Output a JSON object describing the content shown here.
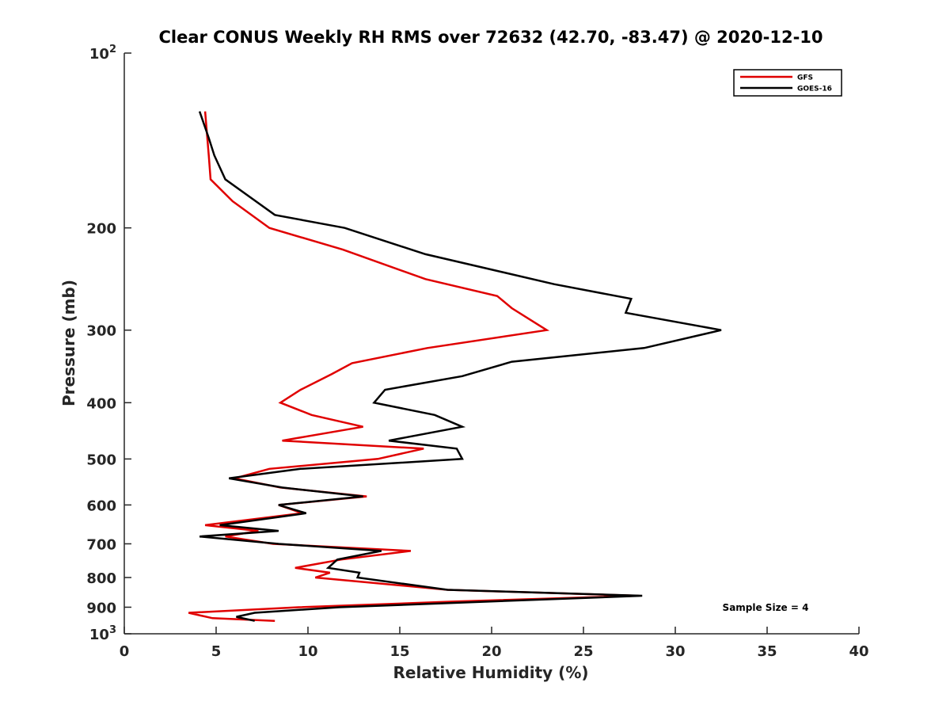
{
  "chart_data": {
    "type": "line",
    "title": "Clear CONUS Weekly RH RMS over 72632 (42.70, -83.47) @ 2020-12-10",
    "xlabel": "Relative Humidity (%)",
    "ylabel": "Pressure (mb)",
    "xlim": [
      0,
      40
    ],
    "ylim": [
      100,
      1000
    ],
    "y_scale": "log",
    "y_reversed": true,
    "x_ticks": [
      "0",
      "5",
      "10",
      "15",
      "20",
      "25",
      "30",
      "35",
      "40"
    ],
    "y_ticks": [
      {
        "value": 100,
        "base": "10",
        "exp": "2"
      },
      {
        "value": 200,
        "label": "200"
      },
      {
        "value": 300,
        "label": "300"
      },
      {
        "value": 400,
        "label": "400"
      },
      {
        "value": 500,
        "label": "500"
      },
      {
        "value": 600,
        "label": "600"
      },
      {
        "value": 700,
        "label": "700"
      },
      {
        "value": 800,
        "label": "800"
      },
      {
        "value": 900,
        "label": "900"
      },
      {
        "value": 1000,
        "base": "10",
        "exp": "3"
      }
    ],
    "legend_position": "top-right",
    "grid": false,
    "annotation": "Sample Size = 4",
    "series": [
      {
        "name": "GFS",
        "color": "#e00000",
        "points": [
          [
            4.4,
            126
          ],
          [
            4.6,
            150
          ],
          [
            4.7,
            165
          ],
          [
            5.9,
            180
          ],
          [
            7.9,
            200
          ],
          [
            11.9,
            218
          ],
          [
            16.4,
            245
          ],
          [
            20.3,
            262
          ],
          [
            21.1,
            275
          ],
          [
            23.0,
            300
          ],
          [
            16.5,
            322
          ],
          [
            12.4,
            342
          ],
          [
            11.3,
            357
          ],
          [
            9.6,
            380
          ],
          [
            8.5,
            400
          ],
          [
            10.2,
            420
          ],
          [
            13.0,
            440
          ],
          [
            8.6,
            465
          ],
          [
            16.3,
            480
          ],
          [
            13.8,
            500
          ],
          [
            7.9,
            520
          ],
          [
            6.0,
            540
          ],
          [
            8.5,
            560
          ],
          [
            13.2,
            580
          ],
          [
            8.4,
            600
          ],
          [
            9.7,
            620
          ],
          [
            4.4,
            650
          ],
          [
            7.3,
            665
          ],
          [
            5.5,
            680
          ],
          [
            8.1,
            700
          ],
          [
            15.6,
            720
          ],
          [
            11.8,
            745
          ],
          [
            9.3,
            770
          ],
          [
            11.2,
            785
          ],
          [
            10.4,
            800
          ],
          [
            17.6,
            840
          ],
          [
            28.0,
            860
          ],
          [
            18.0,
            880
          ],
          [
            9.5,
            900
          ],
          [
            3.5,
            920
          ],
          [
            4.8,
            940
          ],
          [
            8.2,
            950
          ]
        ]
      },
      {
        "name": "GOES-16",
        "color": "#000000",
        "points": [
          [
            4.1,
            126
          ],
          [
            4.6,
            140
          ],
          [
            4.9,
            150
          ],
          [
            5.5,
            165
          ],
          [
            8.2,
            190
          ],
          [
            12.0,
            200
          ],
          [
            16.4,
            222
          ],
          [
            23.4,
            250
          ],
          [
            27.6,
            265
          ],
          [
            27.3,
            280
          ],
          [
            32.5,
            300
          ],
          [
            28.3,
            322
          ],
          [
            21.1,
            340
          ],
          [
            18.4,
            360
          ],
          [
            14.2,
            380
          ],
          [
            13.6,
            400
          ],
          [
            16.9,
            420
          ],
          [
            18.4,
            440
          ],
          [
            14.4,
            465
          ],
          [
            18.1,
            480
          ],
          [
            18.4,
            500
          ],
          [
            9.6,
            520
          ],
          [
            5.7,
            540
          ],
          [
            8.6,
            560
          ],
          [
            13.0,
            580
          ],
          [
            8.4,
            600
          ],
          [
            9.9,
            620
          ],
          [
            5.2,
            650
          ],
          [
            8.4,
            665
          ],
          [
            4.1,
            680
          ],
          [
            8.4,
            700
          ],
          [
            14.0,
            720
          ],
          [
            11.6,
            745
          ],
          [
            11.1,
            770
          ],
          [
            12.8,
            785
          ],
          [
            12.7,
            800
          ],
          [
            17.6,
            840
          ],
          [
            28.2,
            860
          ],
          [
            11.7,
            900
          ],
          [
            7.1,
            920
          ],
          [
            6.1,
            935
          ],
          [
            7.1,
            950
          ]
        ]
      }
    ]
  }
}
